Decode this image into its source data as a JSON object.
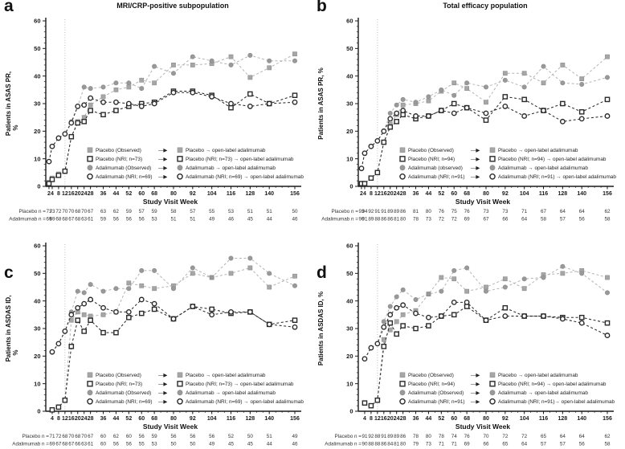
{
  "style": {
    "axis": "#1a1a1a",
    "observed_line": "#b4b4b4",
    "observed_square": "#a6a6a6",
    "observed_circle": "#999999",
    "nri_line": "#2a2a2a",
    "dropline": "#bdbdbd",
    "legend_arrow": "—▶"
  },
  "chart_data": [
    {
      "panel_label": "a",
      "type": "line",
      "title": "MRI/CRP-positive subpopulation",
      "ylabel_lines": [
        "Patients in ASAS PR,",
        "%"
      ],
      "xlabel": "Study Visit Week",
      "ylim": [
        0,
        60
      ],
      "yticks": [
        0,
        10,
        20,
        30,
        40,
        50,
        60
      ],
      "dropline_week": 12,
      "x": [
        2,
        4,
        8,
        12,
        16,
        20,
        24,
        28,
        36,
        44,
        52,
        60,
        68,
        80,
        92,
        104,
        116,
        128,
        140,
        156
      ],
      "series": [
        {
          "name": "Placebo (Observed)",
          "marker": "square",
          "variant": "observed",
          "values": [
            1.5,
            3,
            4.5,
            5.5,
            18,
            23.5,
            25,
            29.5,
            32.5,
            35,
            36,
            38.5,
            37.5,
            44,
            44,
            44.5,
            47,
            39.5,
            43,
            48
          ]
        },
        {
          "name": "Adalimumab (Observed)",
          "marker": "circle",
          "variant": "observed",
          "values": [
            9,
            14.5,
            17.5,
            19,
            23.5,
            29,
            36,
            35.5,
            36,
            37.5,
            37.5,
            35.5,
            43.5,
            41,
            47,
            45.5,
            44,
            47.5,
            45.5,
            45.5
          ]
        },
        {
          "name": "Placebo (NRI; n=73)",
          "marker": "square",
          "variant": "nri",
          "values": [
            1,
            2.5,
            4,
            5.5,
            18,
            23,
            23.5,
            27.5,
            26,
            27.5,
            29,
            30,
            30.5,
            34.5,
            34.5,
            33,
            28.5,
            33.5,
            30,
            33
          ]
        },
        {
          "name": "Adalimumab (NRI; n=69)",
          "marker": "circle",
          "variant": "nri",
          "values": [
            9,
            14.5,
            17.5,
            19,
            23,
            29,
            29.5,
            32,
            30.5,
            30.5,
            30,
            29,
            30,
            34,
            34,
            32.5,
            30,
            29,
            30,
            30.5
          ]
        }
      ],
      "legend": [
        {
          "marker": "square",
          "variant": "observed",
          "left": "Placebo (Observed)",
          "right": "Placebo → open-label adalimumab"
        },
        {
          "marker": "square",
          "variant": "nri",
          "left": "Placebo (NRI; n=73)",
          "right": "Placebo (NRI; n=73) → open-label adalimumab"
        },
        {
          "marker": "circle",
          "variant": "observed",
          "left": "Adalimumab (Observed)",
          "right": "Adalimumab → open-label adalimumab"
        },
        {
          "marker": "circle",
          "variant": "nri",
          "left": "Adalimumab (NRI; n=69)",
          "right": "Adalimumab (NRI; n=69) → open-label adalimumab"
        }
      ],
      "n_rows": [
        {
          "label": "Placebo n =",
          "values": [
            73,
            73,
            72,
            70,
            70,
            68,
            70,
            67,
            63,
            62,
            59,
            57,
            59,
            58,
            57,
            55,
            53,
            51,
            51,
            50
          ]
        },
        {
          "label": "Adalimumab n =",
          "values": [
            69,
            69,
            68,
            68,
            67,
            68,
            63,
            61,
            59,
            56,
            56,
            56,
            53,
            51,
            51,
            49,
            46,
            45,
            44,
            46
          ]
        }
      ]
    },
    {
      "panel_label": "b",
      "type": "line",
      "title": "Total efficacy population",
      "ylabel_lines": [
        "Patients in ASAS PR, %"
      ],
      "xlabel": "Study Visit Week",
      "ylim": [
        0,
        60
      ],
      "yticks": [
        0,
        10,
        20,
        30,
        40,
        50,
        60
      ],
      "dropline_week": 12,
      "x": [
        2,
        4,
        8,
        12,
        16,
        20,
        24,
        28,
        36,
        44,
        52,
        60,
        68,
        80,
        92,
        104,
        116,
        128,
        140,
        156
      ],
      "series": [
        {
          "name": "Placebo (Observed)",
          "marker": "square",
          "variant": "observed",
          "values": [
            1,
            1,
            3,
            5,
            16,
            22.5,
            26,
            29.5,
            30,
            31,
            34.5,
            37.5,
            35.5,
            30.5,
            41,
            41,
            37.5,
            44,
            39,
            47
          ]
        },
        {
          "name": "Adalimumab (observed)",
          "marker": "circle",
          "variant": "observed",
          "values": [
            6.5,
            12,
            14.5,
            16.5,
            20,
            26.5,
            29.5,
            31.5,
            30.5,
            32.5,
            35,
            33,
            37.5,
            36,
            38.5,
            36,
            43.5,
            37.5,
            37,
            39.5
          ]
        },
        {
          "name": "Placebo (NRI; n=94)",
          "marker": "square",
          "variant": "nri",
          "values": [
            1,
            1,
            3,
            5,
            16,
            21.5,
            23.5,
            26,
            24.5,
            25.5,
            27.5,
            30,
            28.5,
            24,
            32.5,
            31.5,
            27.5,
            30,
            27,
            31.5
          ]
        },
        {
          "name": "Adalimumab (NRI; n=91)",
          "marker": "circle",
          "variant": "nri",
          "values": [
            6.5,
            12,
            14.5,
            16.5,
            20,
            24.5,
            26.5,
            27.5,
            25.5,
            25.5,
            27.5,
            26.5,
            28.5,
            26.5,
            29,
            25.5,
            27.5,
            23.5,
            24.5,
            25.5
          ]
        }
      ],
      "legend": [
        {
          "marker": "square",
          "variant": "observed",
          "left": "Placebo (Observed)",
          "right": "Placebo → open-label adalimumab"
        },
        {
          "marker": "square",
          "variant": "nri",
          "left": "Placebo (NRI; n=94)",
          "right": "Placebo (NRI; n=94) → open-label adalimumab"
        },
        {
          "marker": "circle",
          "variant": "observed",
          "left": "Adalimumab (observed)",
          "right": "Adalimumab → open-label adalimumab"
        },
        {
          "marker": "circle",
          "variant": "nri",
          "left": "Adalimumab (NRI; n=91)",
          "right": "Adalimumab (NRI; n=91) → open-label adalimumab"
        }
      ],
      "n_rows": [
        {
          "label": "Placebo n =",
          "values": [
            93,
            94,
            92,
            91,
            91,
            89,
            89,
            86,
            81,
            80,
            76,
            75,
            76,
            73,
            73,
            71,
            67,
            64,
            64,
            62
          ]
        },
        {
          "label": "Adalimumab n =",
          "values": [
            90,
            91,
            89,
            88,
            86,
            86,
            81,
            80,
            78,
            73,
            72,
            72,
            69,
            67,
            66,
            64,
            58,
            57,
            56,
            58
          ]
        }
      ]
    },
    {
      "panel_label": "c",
      "type": "line",
      "title": "",
      "ylabel_lines": [
        "Patients in ASDAS ID,",
        "%"
      ],
      "xlabel": "Study Visit Week",
      "ylim": [
        0,
        60
      ],
      "yticks": [
        0,
        10,
        20,
        30,
        40,
        50,
        60
      ],
      "dropline_week": 12,
      "x": [
        4,
        8,
        12,
        16,
        20,
        24,
        28,
        36,
        44,
        52,
        60,
        68,
        80,
        92,
        104,
        116,
        128,
        140,
        156
      ],
      "series": [
        {
          "name": "Placebo (Observed)",
          "marker": "square",
          "variant": "observed",
          "values": [
            0.5,
            1.5,
            4,
            33,
            36,
            35,
            34.5,
            35,
            36,
            46.5,
            45.5,
            44.5,
            45.5,
            50,
            48.5,
            50,
            52,
            45,
            49
          ]
        },
        {
          "name": "Adalimumab (Observed)",
          "marker": "circle",
          "variant": "observed",
          "values": [
            21.5,
            24.5,
            29,
            36,
            43.5,
            43,
            46,
            43.5,
            44.5,
            44.5,
            51,
            51,
            44.5,
            52,
            48.5,
            55.5,
            55.5,
            50,
            45.5
          ]
        },
        {
          "name": "Placebo (NRI; n=73)",
          "marker": "square",
          "variant": "nri",
          "values": [
            0.5,
            1.5,
            4,
            23.5,
            33,
            29,
            33,
            28.5,
            28.5,
            34,
            35.5,
            37,
            33.5,
            38,
            37,
            35.5,
            36,
            31.5,
            33
          ]
        },
        {
          "name": "Adalimumab (NRI; n=69)",
          "marker": "circle",
          "variant": "nri",
          "values": [
            21.5,
            24.5,
            29,
            35,
            37.5,
            39,
            40.5,
            37.5,
            36,
            36,
            40.5,
            39,
            33.5,
            38,
            35,
            36,
            36,
            31.5,
            30.5
          ]
        }
      ],
      "legend": [
        {
          "marker": "square",
          "variant": "observed",
          "left": "Placebo (Observed)",
          "right": "Placebo → open-label adalimumab"
        },
        {
          "marker": "square",
          "variant": "nri",
          "left": "Placebo (NRI; n=73)",
          "right": "Placebo (NRI; n=73) → open-label adalimumab"
        },
        {
          "marker": "circle",
          "variant": "observed",
          "left": "Adalimumab (Observed)",
          "right": "Adalimumab → open-label adalimumab"
        },
        {
          "marker": "circle",
          "variant": "nri",
          "left": "Adalimumab (NRI; n=69)",
          "right": "Adalimumab (NRI; n=69) → open-label adalimumab"
        }
      ],
      "n_rows": [
        {
          "label": "Placebo n =",
          "values": [
            71,
            72,
            68,
            70,
            68,
            70,
            67,
            60,
            62,
            60,
            56,
            59,
            56,
            56,
            56,
            52,
            50,
            51,
            49
          ]
        },
        {
          "label": "Adalimumab n =",
          "values": [
            69,
            67,
            68,
            67,
            66,
            63,
            61,
            60,
            56,
            56,
            55,
            53,
            50,
            50,
            49,
            45,
            45,
            44,
            46
          ]
        }
      ]
    },
    {
      "panel_label": "d",
      "type": "line",
      "title": "",
      "ylabel_lines": [
        "Patients in ASDAS ID, %"
      ],
      "xlabel": "Study Visit Week",
      "ylim": [
        0,
        60
      ],
      "yticks": [
        0,
        10,
        20,
        30,
        40,
        50,
        60
      ],
      "dropline_week": 12,
      "x": [
        4,
        8,
        12,
        16,
        20,
        24,
        28,
        36,
        44,
        52,
        60,
        68,
        80,
        92,
        104,
        116,
        128,
        140,
        156
      ],
      "series": [
        {
          "name": "Placebo (Observed)",
          "marker": "square",
          "variant": "observed",
          "values": [
            3,
            2,
            4,
            26,
            29.5,
            32.5,
            35,
            36.5,
            42.5,
            48.5,
            48,
            43.5,
            45,
            48,
            44.5,
            49.5,
            50,
            51,
            48.5
          ]
        },
        {
          "name": "Adalimumab (Observed)",
          "marker": "circle",
          "variant": "observed",
          "values": [
            19,
            23,
            24.5,
            32.5,
            38,
            41.5,
            44,
            40.5,
            42.5,
            43.5,
            51,
            52,
            43.5,
            45,
            48,
            48.5,
            52.5,
            50,
            43
          ]
        },
        {
          "name": "Placebo (NRI; n=94)",
          "marker": "square",
          "variant": "nri",
          "values": [
            3,
            2,
            4,
            23.5,
            32,
            28,
            31,
            30,
            31,
            34.5,
            35,
            38,
            33,
            37.5,
            34.5,
            34.5,
            34,
            34,
            32
          ]
        },
        {
          "name": "Adalimumab (NRI; n=91)",
          "marker": "circle",
          "variant": "nri",
          "values": [
            19,
            23,
            24.5,
            30.5,
            35,
            37.5,
            38.5,
            35.5,
            34,
            34.5,
            39.5,
            39.5,
            33,
            34.5,
            34.5,
            34.5,
            33.5,
            32,
            27.5
          ]
        }
      ],
      "legend": [
        {
          "marker": "square",
          "variant": "observed",
          "left": "Placebo (Observed)",
          "right": "Placebo → open-label adalimumab"
        },
        {
          "marker": "square",
          "variant": "nri",
          "left": "Placebo (NRI; n=94)",
          "right": "Placebo (NRI; n=94) → open-label adalimumab"
        },
        {
          "marker": "circle",
          "variant": "observed",
          "left": "Adalimumab (Observed)",
          "right": "Adalimumab → open-label adalimumab"
        },
        {
          "marker": "circle",
          "variant": "nri",
          "left": "Adalimumab (NRI; n=91)",
          "right": "Adalimumab (NRI; n=91)→ open-label adalimumab"
        }
      ],
      "n_rows": [
        {
          "label": "Placebo n =",
          "values": [
            91,
            92,
            88,
            91,
            89,
            89,
            86,
            78,
            80,
            78,
            74,
            76,
            70,
            72,
            72,
            65,
            64,
            64,
            62
          ]
        },
        {
          "label": "Adalimumab n =",
          "values": [
            90,
            88,
            88,
            86,
            84,
            81,
            80,
            79,
            73,
            71,
            71,
            69,
            66,
            65,
            64,
            57,
            57,
            56,
            58
          ]
        }
      ]
    }
  ]
}
